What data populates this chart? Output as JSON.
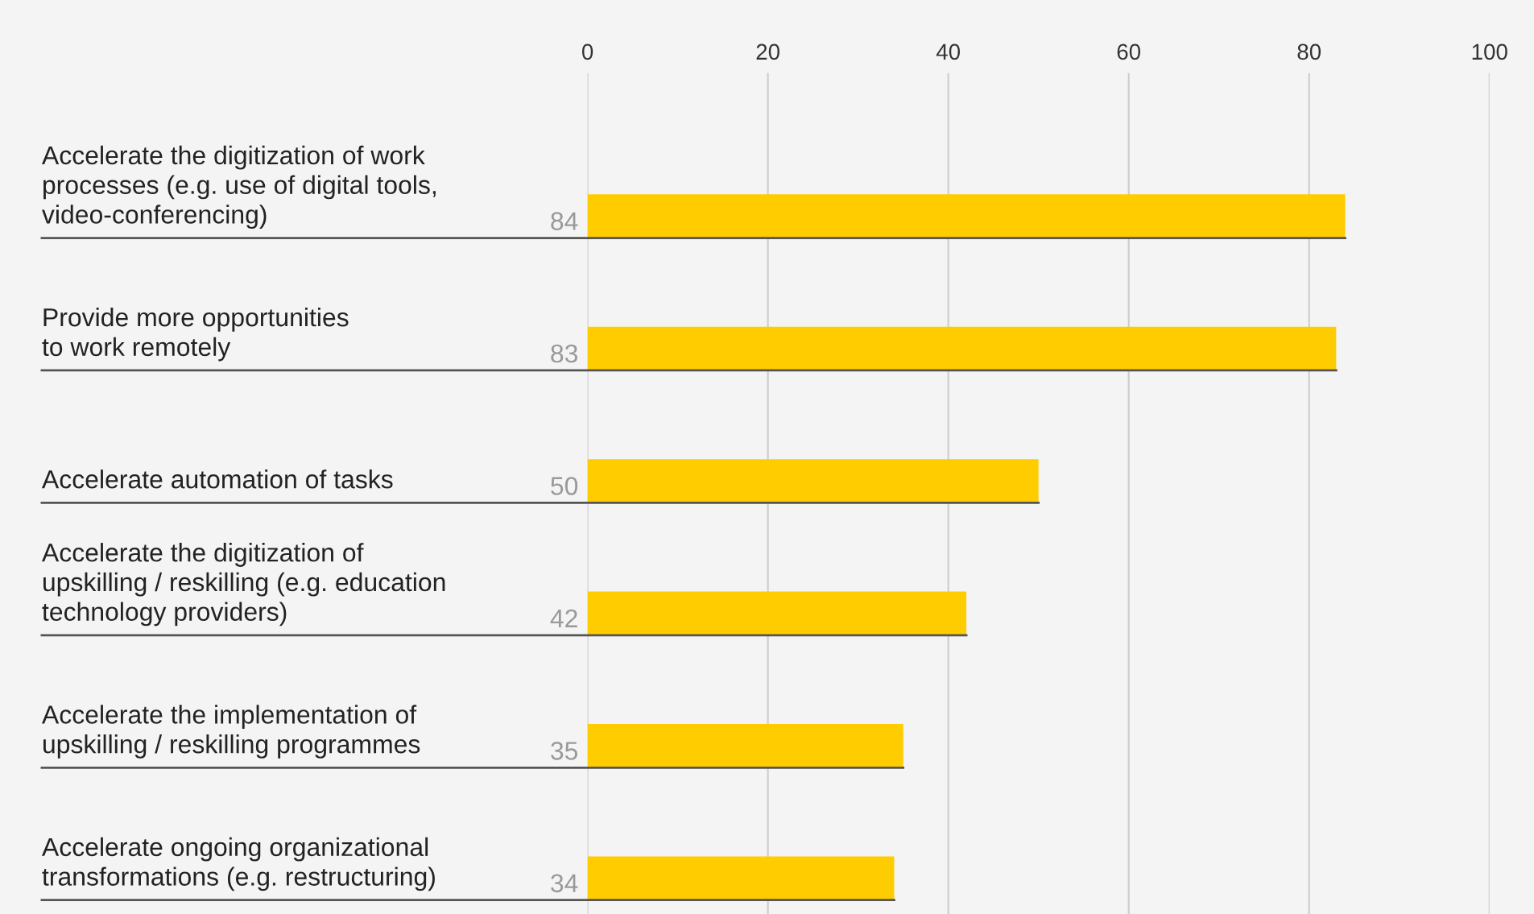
{
  "chart_data": {
    "type": "bar",
    "orientation": "horizontal",
    "categories": [
      "Accelerate the digitization of work\nprocesses (e.g. use of digital tools,\nvideo-conferencing)",
      "Provide more opportunities\nto work remotely",
      "Accelerate automation of tasks",
      "Accelerate the digitization of\nupskilling / reskilling (e.g. education\ntechnology providers)",
      "Accelerate the implementation of\nupskilling / reskilling programmes",
      "Accelerate ongoing organizational\ntransformations (e.g. restructuring)"
    ],
    "values": [
      84,
      83,
      50,
      42,
      35,
      34
    ],
    "color": "#ffcc00",
    "xlim": [
      0,
      100
    ],
    "xticks": [
      0,
      20,
      40,
      60,
      80,
      100
    ],
    "grid": "x",
    "data_labels": true
  }
}
